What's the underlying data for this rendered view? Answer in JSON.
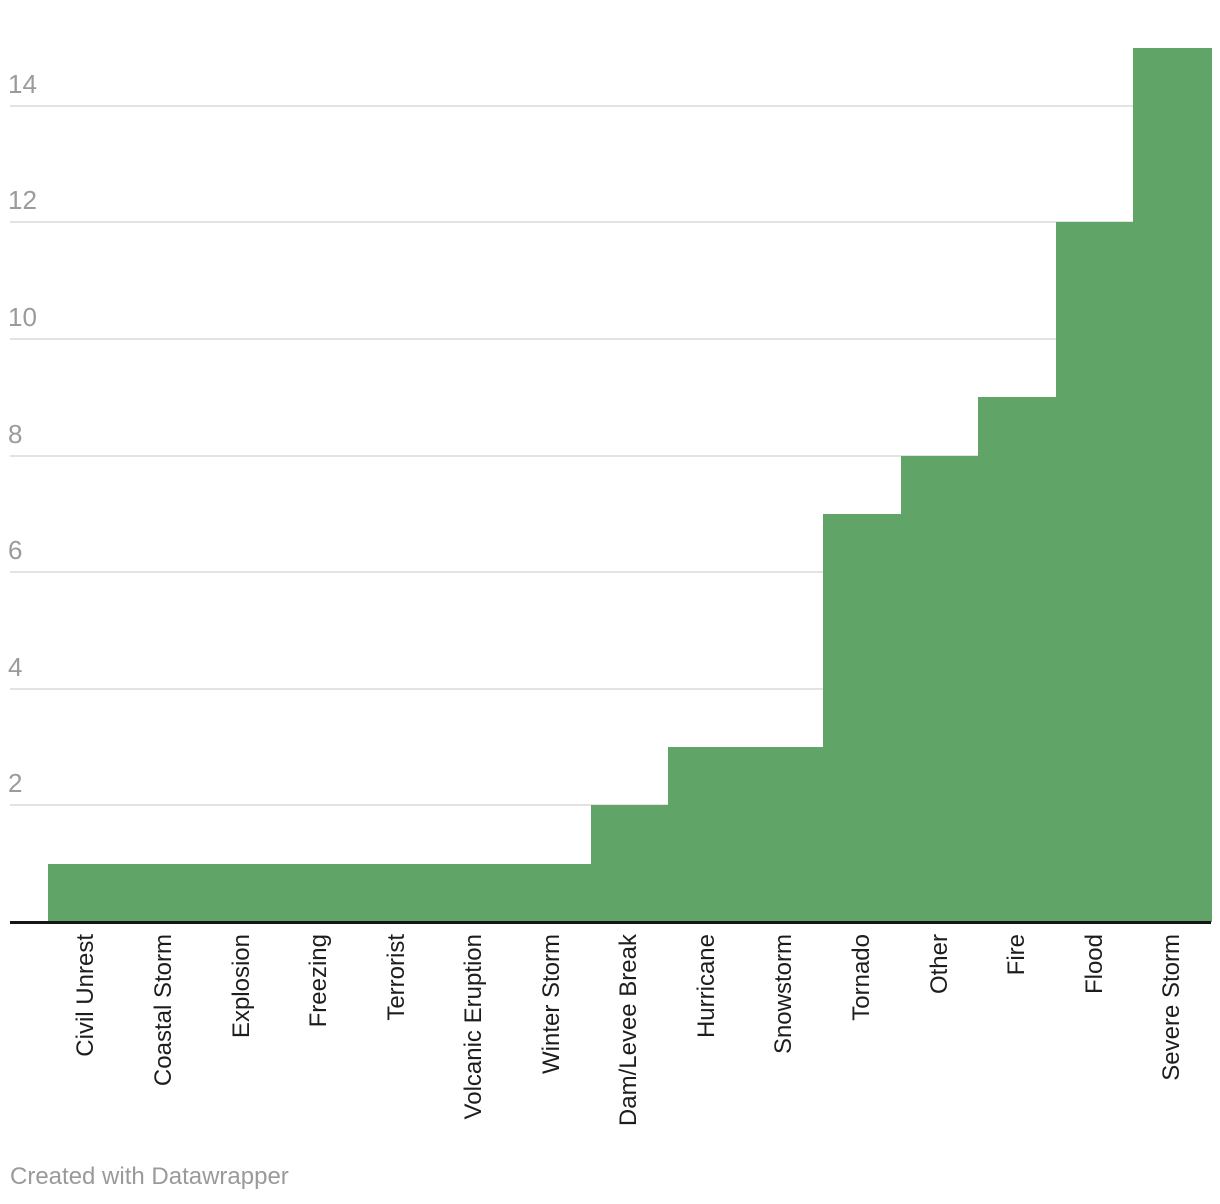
{
  "chart_data": {
    "type": "bar",
    "title": "",
    "xlabel": "",
    "ylabel": "",
    "categories": [
      "Civil Unrest",
      "Coastal Storm",
      "Explosion",
      "Freezing",
      "Terrorist",
      "Volcanic Eruption",
      "Winter Storm",
      "Dam/Levee Break",
      "Hurricane",
      "Snowstorm",
      "Tornado",
      "Other",
      "Fire",
      "Flood",
      "Severe Storm"
    ],
    "values": [
      1,
      1,
      1,
      1,
      1,
      1,
      1,
      2,
      3,
      3,
      7,
      8,
      9,
      12,
      15
    ],
    "y_ticks": [
      2,
      4,
      6,
      8,
      10,
      12,
      14
    ],
    "ylim": [
      0,
      15
    ],
    "grid": "horizontal",
    "legend": "none",
    "bar_gap": 0,
    "x_label_rotation": -90,
    "colors": {
      "bar": "#60a567",
      "gridline": "#e3e3e3",
      "axis_line": "#161616",
      "y_tick_text": "#9b9b9b",
      "x_label_text": "#1d1d1d",
      "footer_text": "#9a9a9a"
    }
  },
  "footer": {
    "text": "Created with Datawrapper"
  }
}
